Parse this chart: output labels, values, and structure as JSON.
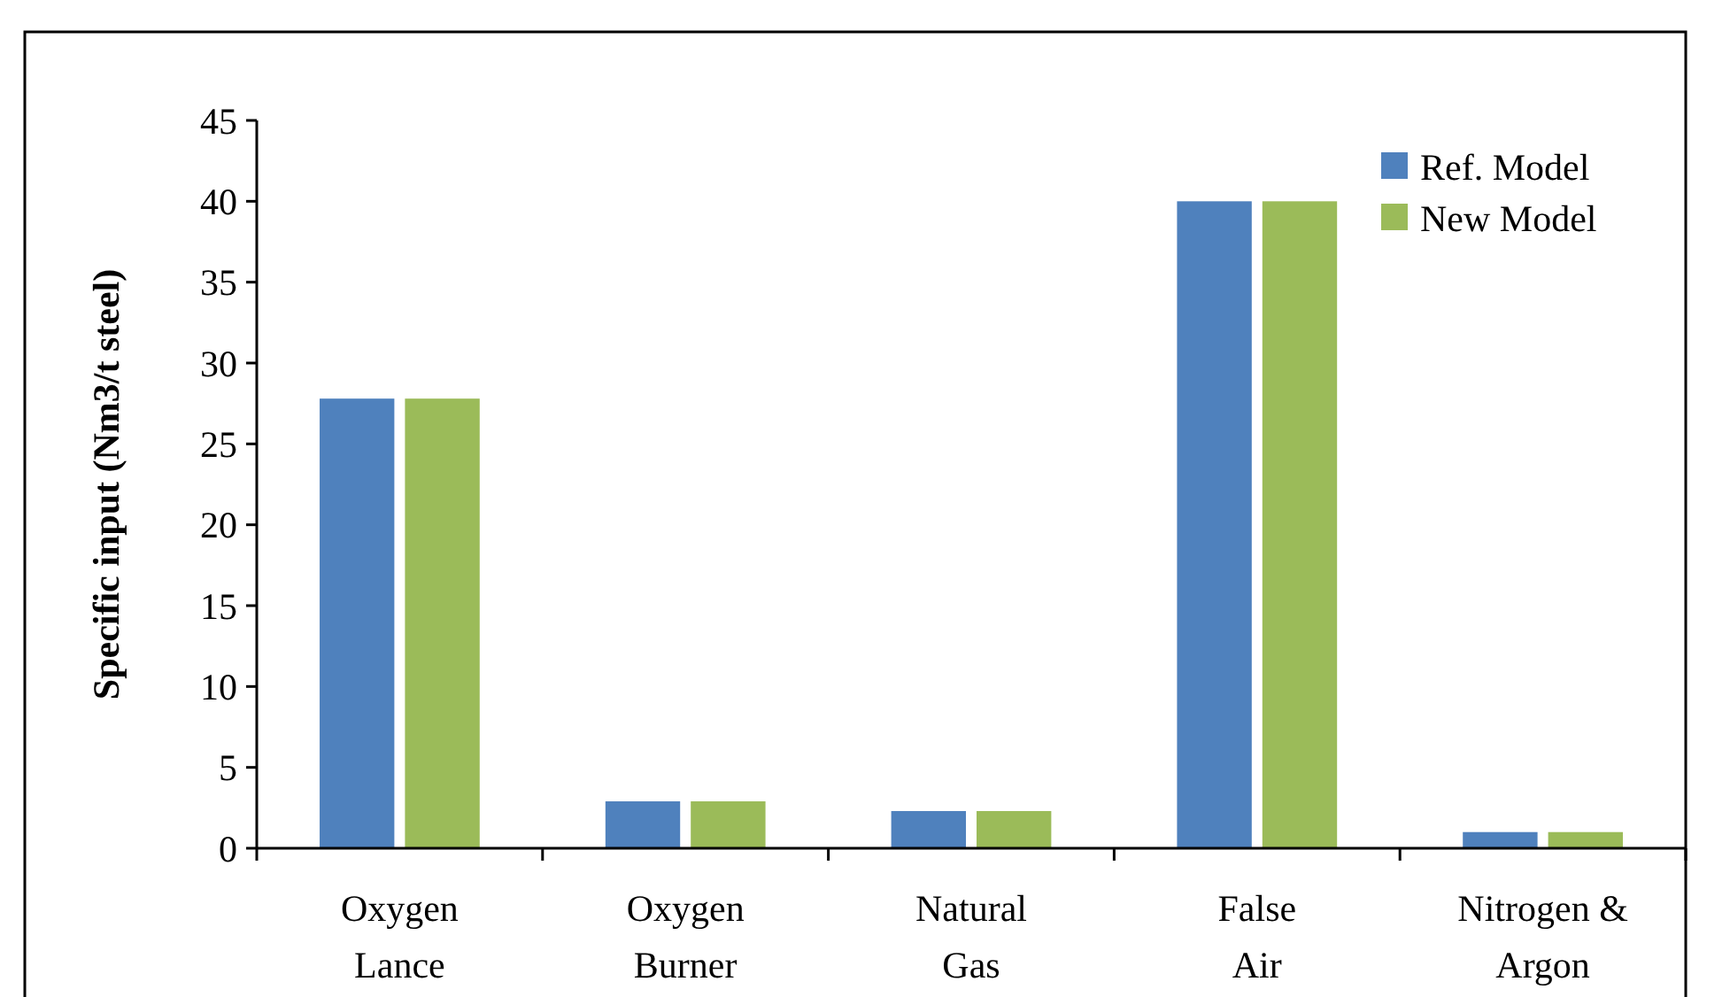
{
  "chart_data": {
    "type": "bar",
    "ylabel": "Specific input (Nm3/t steel)",
    "categories": [
      "Oxygen Lance",
      "Oxygen Burner",
      "Natural Gas",
      "False Air",
      "Nitrogen & Argon"
    ],
    "series": [
      {
        "name": "Ref. Model",
        "color": "#4f81bd",
        "values": [
          27.8,
          2.9,
          2.3,
          40.0,
          1.0
        ]
      },
      {
        "name": "New Model",
        "color": "#9bbb59",
        "values": [
          27.8,
          2.9,
          2.3,
          40.0,
          1.0
        ]
      }
    ],
    "ylim": [
      0,
      45
    ],
    "yticks": [
      0,
      5,
      10,
      15,
      20,
      25,
      30,
      35,
      40,
      45
    ],
    "grid": false,
    "legend": "top right"
  }
}
